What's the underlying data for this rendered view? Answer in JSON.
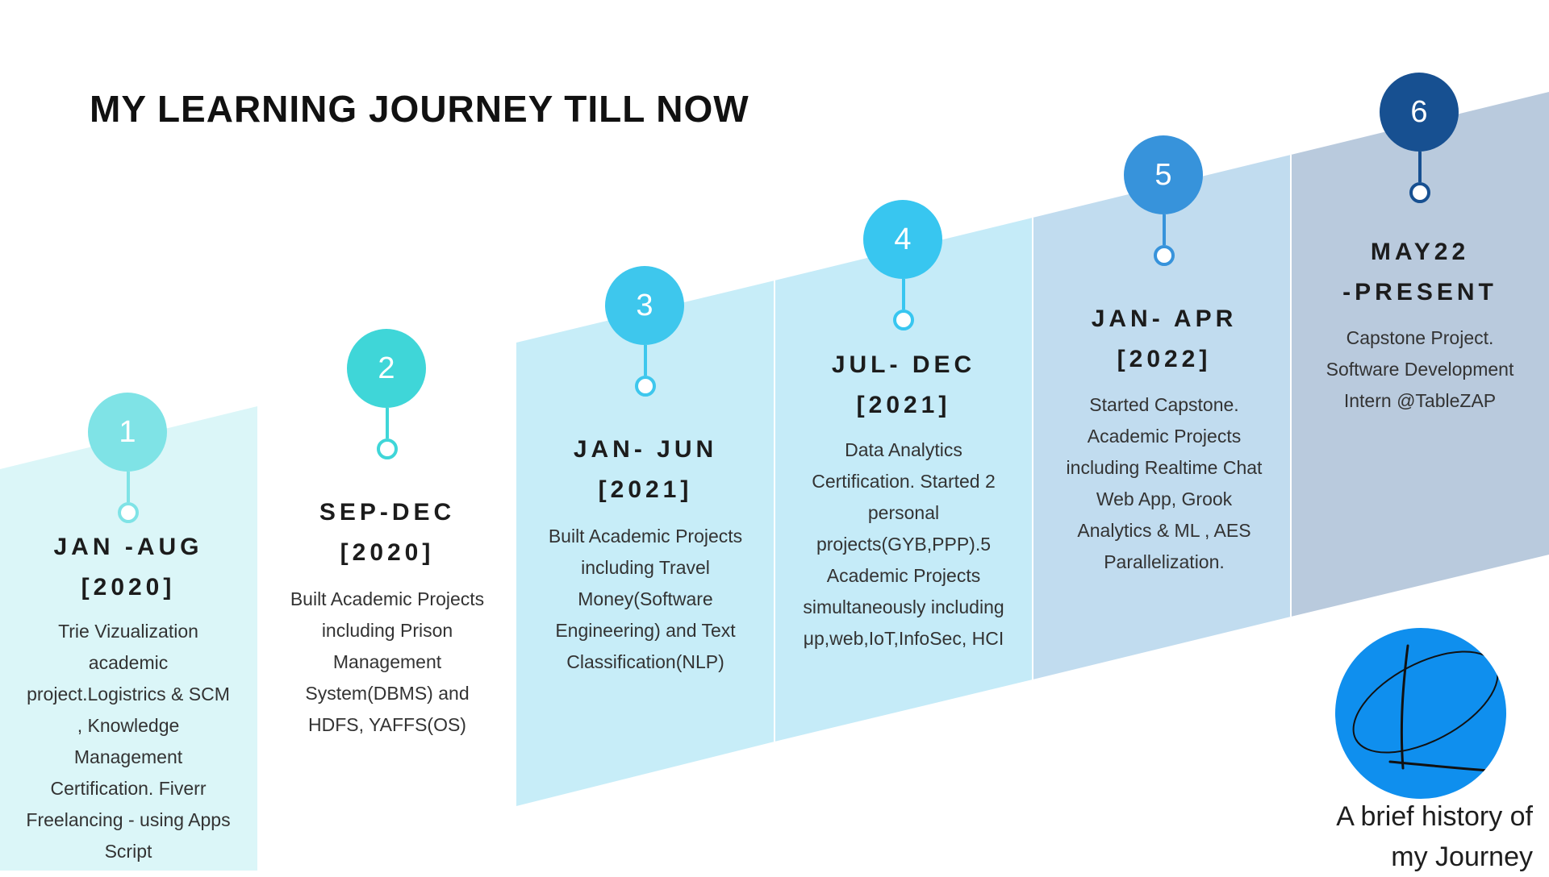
{
  "title": "MY LEARNING JOURNEY TILL NOW",
  "colors": {
    "panel_1": "#dbf6f8",
    "panel_2": "#ffffff",
    "panel_3": "#c7edf8",
    "panel_4": "#c5ebf8",
    "panel_5": "#c1dcef",
    "panel_6": "#b9cadd",
    "circle_1": "#7fe3e6",
    "circle_2": "#3fd6d8",
    "circle_3": "#3ec7ed",
    "circle_4": "#38c6f0",
    "circle_5": "#3793db",
    "circle_6": "#175091",
    "logo_blue": "#0f8fee"
  },
  "milestones": [
    {
      "number": "1",
      "period": "JAN -AUG\n[2020]",
      "description": "Trie Vizualization academic project.Logistrics & SCM , Knowledge Management Certification. Fiverr Freelancing - using Apps Script"
    },
    {
      "number": "2",
      "period": "SEP-DEC\n[2020]",
      "description": "Built Academic Projects including Prison Management System(DBMS) and HDFS, YAFFS(OS)"
    },
    {
      "number": "3",
      "period": "JAN- JUN\n[2021]",
      "description": "Built Academic Projects including Travel Money(Software Engineering) and Text Classification(NLP)"
    },
    {
      "number": "4",
      "period": "JUL- DEC\n[2021]",
      "description": "Data Analytics Certification. Started 2 personal projects(GYB,PPP).5 Academic Projects simultaneously including μp,web,IoT,InfoSec, HCI"
    },
    {
      "number": "5",
      "period": "JAN- APR\n[2022]",
      "description": "Started Capstone. Academic Projects including Realtime Chat Web App, Grook Analytics & ML , AES Parallelization."
    },
    {
      "number": "6",
      "period": "MAY22\n-PRESENT",
      "description": "Capstone Project. Software Development Intern @TableZAP"
    }
  ],
  "logo": {
    "icon": "signature-logo-icon"
  },
  "caption": "A brief history of\nmy Journey"
}
